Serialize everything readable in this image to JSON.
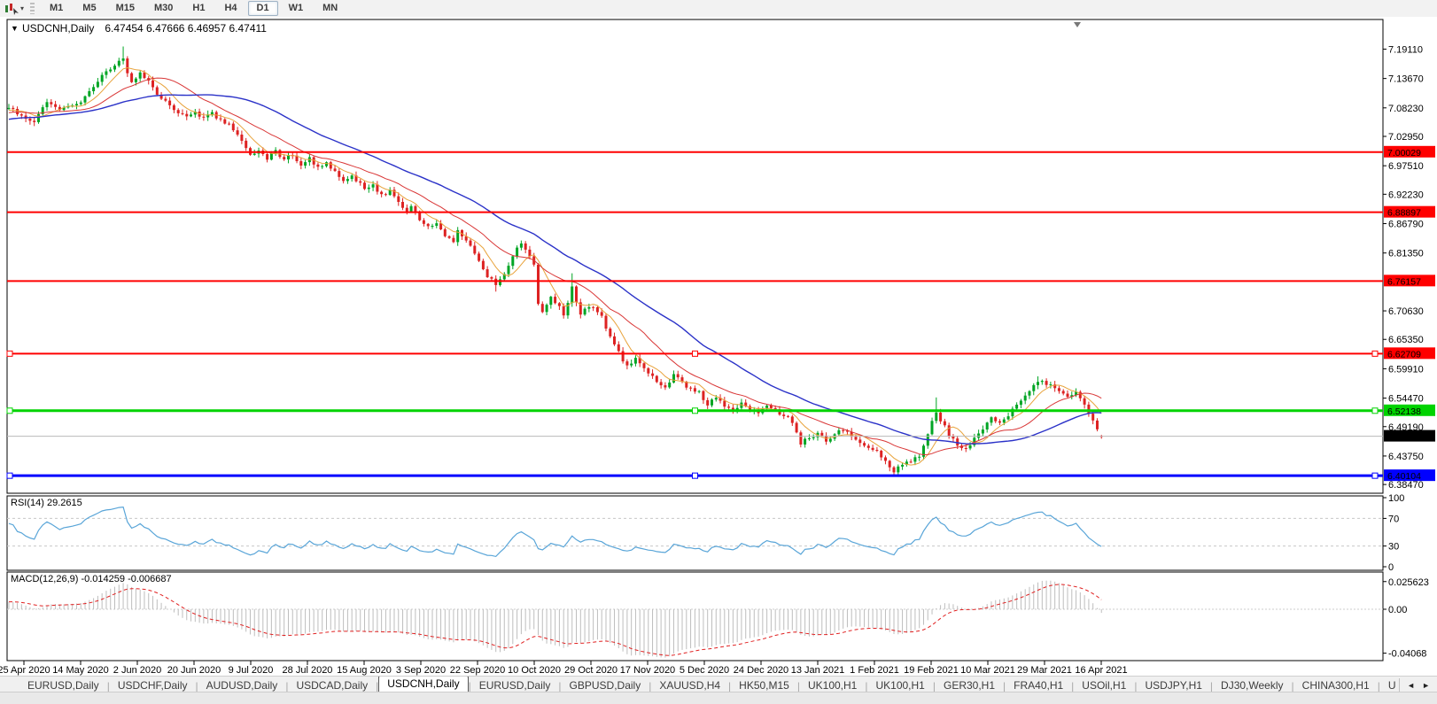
{
  "toolbar": {
    "timeframes": [
      "M1",
      "M5",
      "M15",
      "M30",
      "H1",
      "H4",
      "D1",
      "W1",
      "MN"
    ],
    "active_timeframe": "D1"
  },
  "icons": {
    "dropdown": "▾",
    "collapse": "▼",
    "tab_scroll_left": "◄",
    "tab_scroll_right": "►"
  },
  "chart_data": {
    "type": "candlestick",
    "symbol": "USDCNH",
    "timeframe": "Daily",
    "title": "USDCNH,Daily",
    "ohlc_display": "6.47454 6.47666 6.46957 6.47411",
    "last_ohlc": {
      "open": 6.47454,
      "high": 6.47666,
      "low": 6.46957,
      "close": 6.47411
    },
    "bars": 259,
    "price_range": {
      "top": 7.246,
      "bottom": 6.3685
    },
    "price_axis_ticks": [
      "7.19110",
      "7.13670",
      "7.08230",
      "7.02950",
      "6.97510",
      "6.92230",
      "6.86790",
      "6.81350",
      "6.70630",
      "6.65350",
      "6.59910",
      "6.54470",
      "6.49190",
      "6.43750",
      "6.38470"
    ],
    "x_axis_labels": [
      "25 Apr 2020",
      "14 May 2020",
      "2 Jun 2020",
      "20 Jun 2020",
      "9 Jul 2020",
      "28 Jul 2020",
      "15 Aug 2020",
      "3 Sep 2020",
      "22 Sep 2020",
      "10 Oct 2020",
      "29 Oct 2020",
      "17 Nov 2020",
      "5 Dec 2020",
      "24 Dec 2020",
      "13 Jan 2021",
      "1 Feb 2021",
      "19 Feb 2021",
      "10 Mar 2021",
      "29 Mar 2021",
      "16 Apr 2021"
    ],
    "close_anchors": [
      [
        0,
        7.082
      ],
      [
        3,
        7.068
      ],
      [
        6,
        7.058
      ],
      [
        9,
        7.094
      ],
      [
        12,
        7.076
      ],
      [
        15,
        7.086
      ],
      [
        17,
        7.09
      ],
      [
        20,
        7.124
      ],
      [
        23,
        7.15
      ],
      [
        25,
        7.162
      ],
      [
        27,
        7.172
      ],
      [
        29,
        7.128
      ],
      [
        31,
        7.146
      ],
      [
        33,
        7.13
      ],
      [
        36,
        7.1
      ],
      [
        39,
        7.08
      ],
      [
        42,
        7.064
      ],
      [
        44,
        7.076
      ],
      [
        46,
        7.062
      ],
      [
        48,
        7.072
      ],
      [
        50,
        7.06
      ],
      [
        53,
        7.044
      ],
      [
        55,
        7.02
      ],
      [
        57,
        6.996
      ],
      [
        59,
        7.006
      ],
      [
        61,
        6.99
      ],
      [
        63,
        7.002
      ],
      [
        65,
        6.986
      ],
      [
        67,
        6.996
      ],
      [
        69,
        6.978
      ],
      [
        71,
        6.99
      ],
      [
        73,
        6.972
      ],
      [
        75,
        6.982
      ],
      [
        77,
        6.962
      ],
      [
        79,
        6.95
      ],
      [
        81,
        6.958
      ],
      [
        83,
        6.94
      ],
      [
        84,
        6.932
      ],
      [
        86,
        6.94
      ],
      [
        88,
        6.92
      ],
      [
        90,
        6.928
      ],
      [
        92,
        6.908
      ],
      [
        94,
        6.894
      ],
      [
        95,
        6.902
      ],
      [
        97,
        6.878
      ],
      [
        99,
        6.862
      ],
      [
        101,
        6.87
      ],
      [
        103,
        6.846
      ],
      [
        105,
        6.836
      ],
      [
        106,
        6.852
      ],
      [
        108,
        6.836
      ],
      [
        109,
        6.828
      ],
      [
        111,
        6.8
      ],
      [
        112,
        6.786
      ],
      [
        113,
        6.772
      ],
      [
        115,
        6.754
      ],
      [
        117,
        6.776
      ],
      [
        119,
        6.808
      ],
      [
        121,
        6.832
      ],
      [
        122,
        6.82
      ],
      [
        124,
        6.788
      ],
      [
        125,
        6.718
      ],
      [
        126,
        6.708
      ],
      [
        128,
        6.73
      ],
      [
        130,
        6.712
      ],
      [
        131,
        6.7
      ],
      [
        133,
        6.748
      ],
      [
        134,
        6.72
      ],
      [
        135,
        6.7
      ],
      [
        136,
        6.708
      ],
      [
        138,
        6.714
      ],
      [
        140,
        6.694
      ],
      [
        142,
        6.66
      ],
      [
        144,
        6.628
      ],
      [
        146,
        6.602
      ],
      [
        148,
        6.618
      ],
      [
        150,
        6.6
      ],
      [
        151,
        6.59
      ],
      [
        153,
        6.576
      ],
      [
        155,
        6.566
      ],
      [
        157,
        6.586
      ],
      [
        159,
        6.574
      ],
      [
        161,
        6.562
      ],
      [
        163,
        6.556
      ],
      [
        165,
        6.532
      ],
      [
        167,
        6.545
      ],
      [
        169,
        6.53
      ],
      [
        171,
        6.522
      ],
      [
        173,
        6.538
      ],
      [
        175,
        6.524
      ],
      [
        177,
        6.516
      ],
      [
        179,
        6.53
      ],
      [
        181,
        6.522
      ],
      [
        183,
        6.514
      ],
      [
        185,
        6.502
      ],
      [
        187,
        6.462
      ],
      [
        189,
        6.472
      ],
      [
        191,
        6.478
      ],
      [
        193,
        6.466
      ],
      [
        195,
        6.478
      ],
      [
        197,
        6.488
      ],
      [
        199,
        6.47
      ],
      [
        201,
        6.462
      ],
      [
        203,
        6.45
      ],
      [
        205,
        6.446
      ],
      [
        207,
        6.428
      ],
      [
        208,
        6.418
      ],
      [
        209,
        6.408
      ],
      [
        211,
        6.42
      ],
      [
        213,
        6.428
      ],
      [
        215,
        6.44
      ],
      [
        217,
        6.478
      ],
      [
        219,
        6.52
      ],
      [
        220,
        6.505
      ],
      [
        222,
        6.478
      ],
      [
        224,
        6.46
      ],
      [
        226,
        6.452
      ],
      [
        228,
        6.47
      ],
      [
        230,
        6.49
      ],
      [
        232,
        6.508
      ],
      [
        234,
        6.5
      ],
      [
        236,
        6.512
      ],
      [
        238,
        6.532
      ],
      [
        240,
        6.55
      ],
      [
        242,
        6.568
      ],
      [
        244,
        6.576
      ],
      [
        246,
        6.568
      ],
      [
        248,
        6.556
      ],
      [
        250,
        6.548
      ],
      [
        252,
        6.556
      ],
      [
        254,
        6.536
      ],
      [
        256,
        6.5
      ],
      [
        258,
        6.474
      ]
    ],
    "spikes": [
      {
        "bar": 27,
        "high": 7.196
      },
      {
        "bar": 115,
        "low": 6.742
      },
      {
        "bar": 133,
        "high": 6.776
      },
      {
        "bar": 209,
        "low": 6.4032
      },
      {
        "bar": 219,
        "high": 6.546
      },
      {
        "bar": 243,
        "high": 6.585
      }
    ],
    "up_color": "#00A524",
    "down_color": "#DD2222",
    "moving_averages": [
      {
        "period": 7,
        "color": "#E8A33C",
        "width": 1
      },
      {
        "period": 18,
        "color": "#D93636",
        "width": 1
      },
      {
        "period": 40,
        "color": "#2B32C8",
        "width": 1.4
      }
    ],
    "horizontal_lines": [
      {
        "price": 7.00029,
        "label": "7.00029",
        "color": "#FF0000",
        "width": 2,
        "selected": false
      },
      {
        "price": 6.88897,
        "label": "6.88897",
        "color": "#FF0000",
        "width": 2,
        "selected": false
      },
      {
        "price": 6.76157,
        "label": "6.76157",
        "color": "#FF0000",
        "width": 2,
        "selected": false
      },
      {
        "price": 6.62709,
        "label": "6.62709",
        "color": "#FF0000",
        "width": 2,
        "selected": true
      },
      {
        "price": 6.52138,
        "label": "6.52138",
        "color": "#00D300",
        "width": 3,
        "selected": true
      },
      {
        "price": 6.40104,
        "label": "6.40104",
        "color": "#0000FF",
        "width": 3,
        "selected": true
      }
    ],
    "bid_line": {
      "price": 6.47411,
      "label": "6.47411",
      "line_color": "#B9B9B9",
      "badge_color": "#000000"
    },
    "rsi": {
      "period": 14,
      "label": "RSI(14)",
      "value": "29.2615",
      "color": "#59A5D8",
      "levels": [
        70,
        30
      ],
      "axis_labels": [
        "100",
        "70",
        "30",
        "0"
      ],
      "axis_values": [
        100,
        70,
        30,
        0
      ]
    },
    "macd": {
      "label": "MACD(12,26,9)",
      "values_display": "-0.014259 -0.006687",
      "fast": 12,
      "slow": 26,
      "signal": 9,
      "hist_color": "#BDBDBD",
      "signal_color": "#E02020",
      "scale_labels": [
        "0.025623",
        "0.00",
        "-0.04068"
      ],
      "scale_values": [
        0.025623,
        0,
        -0.04068
      ]
    }
  },
  "tabs": {
    "items": [
      "EURUSD,Daily",
      "USDCHF,Daily",
      "AUDUSD,Daily",
      "USDCAD,Daily",
      "USDCNH,Daily",
      "EURUSD,Daily",
      "GBPUSD,Daily",
      "XAUUSD,H4",
      "HK50,M15",
      "UK100,H1",
      "UK100,H1",
      "GER30,H1",
      "FRA40,H1",
      "USOil,H1",
      "USDJPY,H1",
      "DJ30,Weekly",
      "CHINA300,H1",
      "U"
    ],
    "active_index": 4,
    "separator": "|"
  }
}
